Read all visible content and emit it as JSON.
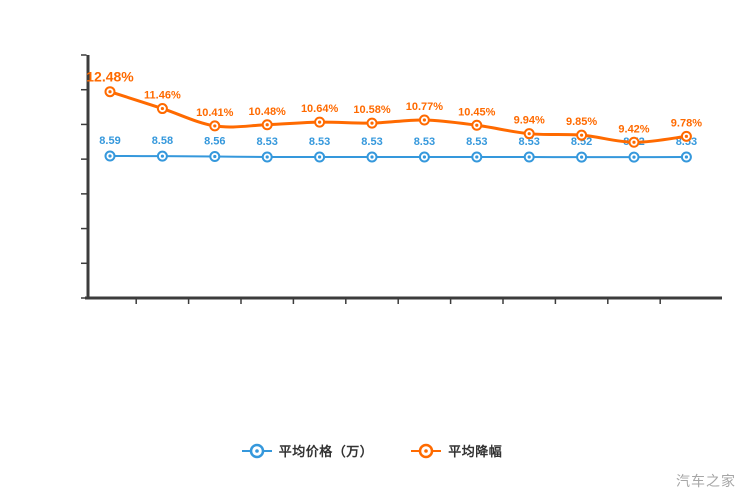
{
  "chart_data": {
    "type": "line",
    "x_count": 12,
    "x_tick_labels": [],
    "title": "",
    "xlabel": "",
    "ylabel": "",
    "ylim": [
      0,
      14.7
    ],
    "grid": false,
    "legend_position": "bottom-center",
    "series": [
      {
        "name": "平均价格（万）",
        "color": "#3598dc",
        "values": [
          8.59,
          8.58,
          8.56,
          8.53,
          8.53,
          8.53,
          8.53,
          8.53,
          8.53,
          8.52,
          8.52,
          8.53
        ],
        "labels": [
          "8.59",
          "8.58",
          "8.56",
          "8.53",
          "8.53",
          "8.53",
          "8.53",
          "8.53",
          "8.53",
          "8.52",
          "8.52",
          "8.53"
        ]
      },
      {
        "name": "平均降幅",
        "color": "#ff6a00",
        "values": [
          12.48,
          11.46,
          10.41,
          10.48,
          10.64,
          10.58,
          10.77,
          10.45,
          9.94,
          9.85,
          9.42,
          9.78
        ],
        "labels": [
          "12.48%",
          "11.46%",
          "10.41%",
          "10.48%",
          "10.64%",
          "10.58%",
          "10.77%",
          "10.45%",
          "9.94%",
          "9.85%",
          "9.42%",
          "9.78%"
        ]
      }
    ]
  },
  "legend": {
    "items": [
      {
        "label": "平均价格（万）",
        "color": "#3598dc"
      },
      {
        "label": "平均降幅",
        "color": "#ff6a00"
      }
    ]
  },
  "watermark": "汽车之家",
  "colors": {
    "axis": "#3c3c3c",
    "blue_series": "#3598dc",
    "orange_series": "#ff6a00",
    "legend_text": "#333333",
    "watermark": "#a6a6a6"
  }
}
